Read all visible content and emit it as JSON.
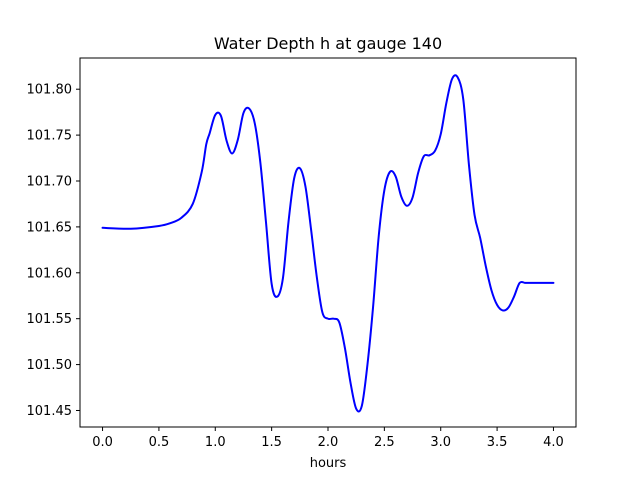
{
  "chart_data": {
    "type": "line",
    "title": "Water Depth h at gauge 140",
    "xlabel": "hours",
    "ylabel": "",
    "xlim": [
      -0.2,
      4.2
    ],
    "ylim": [
      101.432,
      101.834
    ],
    "xticks": [
      0.0,
      0.5,
      1.0,
      1.5,
      2.0,
      2.5,
      3.0,
      3.5,
      4.0
    ],
    "xtick_labels": [
      "0.0",
      "0.5",
      "1.0",
      "1.5",
      "2.0",
      "2.5",
      "3.0",
      "3.5",
      "4.0"
    ],
    "yticks": [
      101.45,
      101.5,
      101.55,
      101.6,
      101.65,
      101.7,
      101.75,
      101.8
    ],
    "ytick_labels": [
      "101.45",
      "101.50",
      "101.55",
      "101.60",
      "101.65",
      "101.70",
      "101.75",
      "101.80"
    ],
    "grid": false,
    "series": [
      {
        "color": "#0000ff",
        "x": [
          0.0,
          0.25,
          0.5,
          0.6,
          0.7,
          0.8,
          0.88,
          0.92,
          0.95,
          1.0,
          1.05,
          1.1,
          1.15,
          1.2,
          1.25,
          1.3,
          1.35,
          1.4,
          1.45,
          1.5,
          1.55,
          1.6,
          1.65,
          1.7,
          1.75,
          1.8,
          1.85,
          1.9,
          1.95,
          2.0,
          2.05,
          2.1,
          2.15,
          2.2,
          2.25,
          2.3,
          2.35,
          2.4,
          2.45,
          2.5,
          2.55,
          2.6,
          2.65,
          2.7,
          2.75,
          2.8,
          2.85,
          2.9,
          2.95,
          3.0,
          3.05,
          3.1,
          3.15,
          3.2,
          3.25,
          3.3,
          3.35,
          3.4,
          3.45,
          3.5,
          3.55,
          3.6,
          3.65,
          3.7,
          3.75,
          3.8,
          3.85,
          3.9,
          3.95,
          4.0
        ],
        "y": [
          101.649,
          101.648,
          101.651,
          101.654,
          101.66,
          101.675,
          101.71,
          101.74,
          101.752,
          101.772,
          101.771,
          101.744,
          101.73,
          101.745,
          101.774,
          101.779,
          101.763,
          101.72,
          101.655,
          101.588,
          101.574,
          101.594,
          101.656,
          101.703,
          101.714,
          101.694,
          101.647,
          101.596,
          101.557,
          101.55,
          101.55,
          101.546,
          101.518,
          101.48,
          101.452,
          101.455,
          101.5,
          101.563,
          101.64,
          101.69,
          101.71,
          101.705,
          101.683,
          101.673,
          101.682,
          101.709,
          101.727,
          101.728,
          101.733,
          101.751,
          101.785,
          101.811,
          101.813,
          101.789,
          101.718,
          101.663,
          101.638,
          101.607,
          101.581,
          101.565,
          101.559,
          101.562,
          101.574,
          101.589,
          101.589,
          101.589,
          101.589,
          101.589,
          101.589,
          101.589
        ]
      }
    ]
  }
}
